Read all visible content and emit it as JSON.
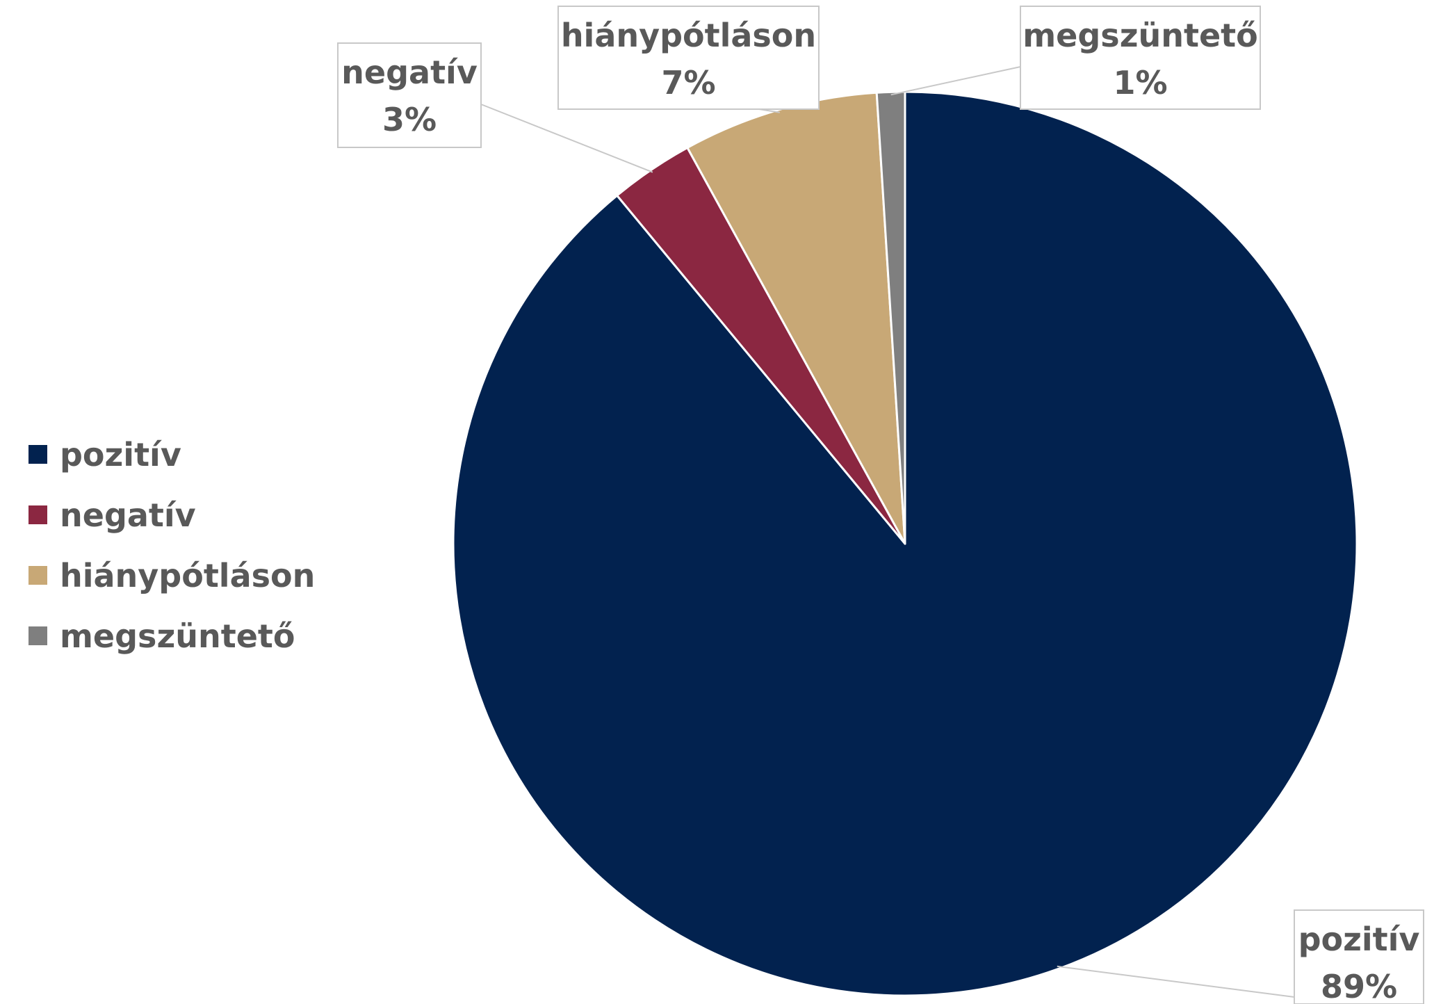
{
  "chart_data": {
    "type": "pie",
    "title": "",
    "categories": [
      "pozitív",
      "negatív",
      "hiánypótláson",
      "megszüntető"
    ],
    "values": [
      89,
      3,
      7,
      1
    ],
    "data_labels": [
      "89%",
      "3%",
      "7%",
      "1%"
    ],
    "colors": [
      "#02224f",
      "#8b2741",
      "#c8a876",
      "#7f7f7f"
    ],
    "start_angle_degrees": 0,
    "direction": "clockwise",
    "legend": {
      "position": "left",
      "entries": [
        "pozitív",
        "negatív",
        "hiánypótláson",
        "megszüntető"
      ]
    }
  }
}
